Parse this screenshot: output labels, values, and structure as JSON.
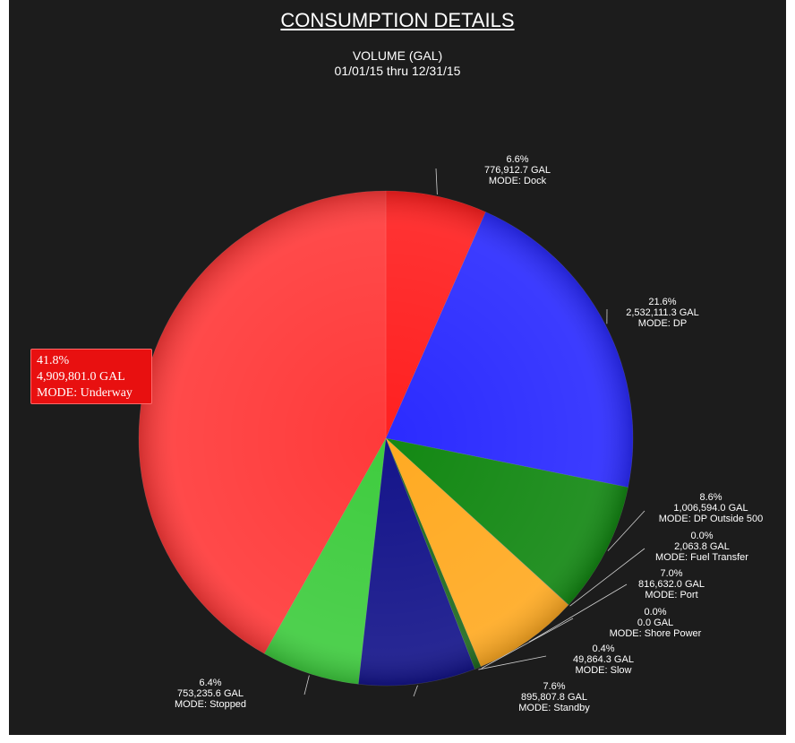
{
  "title": "CONSUMPTION DETAILS",
  "subtitle_line1": "VOLUME (GAL)",
  "subtitle_line2": "01/01/15 thru 12/31/15",
  "chart_data": {
    "type": "pie",
    "title": "CONSUMPTION DETAILS",
    "subtitle": "VOLUME (GAL) 01/01/15 thru 12/31/15",
    "slices": [
      {
        "mode": "Dock",
        "percent": "6.6%",
        "value": 776912.7,
        "value_label": "776,912.7 GAL",
        "mode_label": "MODE: Dock",
        "color": "#ff2020"
      },
      {
        "mode": "DP",
        "percent": "21.6%",
        "value": 2532111.3,
        "value_label": "2,532,111.3 GAL",
        "mode_label": "MODE: DP",
        "color": "#2b2bff"
      },
      {
        "mode": "DP Outside 500",
        "percent": "8.6%",
        "value": 1006594.0,
        "value_label": "1,006,594.0 GAL",
        "mode_label": "MODE: DP Outside 500",
        "color": "#138813"
      },
      {
        "mode": "Fuel Transfer",
        "percent": "0.0%",
        "value": 2063.8,
        "value_label": "2,063.8 GAL",
        "mode_label": "MODE: Fuel Transfer",
        "color": "#6a6a6a"
      },
      {
        "mode": "Port",
        "percent": "7.0%",
        "value": 816632.0,
        "value_label": "816,632.0 GAL",
        "mode_label": "MODE: Port",
        "color": "#ffaa22"
      },
      {
        "mode": "Shore Power",
        "percent": "0.0%",
        "value": 0.0,
        "value_label": "0.0 GAL",
        "mode_label": "MODE: Shore Power",
        "color": "#aaaaaa"
      },
      {
        "mode": "Slow",
        "percent": "0.4%",
        "value": 49864.3,
        "value_label": "49,864.3 GAL",
        "mode_label": "MODE: Slow",
        "color": "#1f6a1f"
      },
      {
        "mode": "Standby",
        "percent": "7.6%",
        "value": 895807.8,
        "value_label": "895,807.8 GAL",
        "mode_label": "MODE: Standby",
        "color": "#14148a"
      },
      {
        "mode": "Stopped",
        "percent": "6.4%",
        "value": 753235.6,
        "value_label": "753,235.6 GAL",
        "mode_label": "MODE: Stopped",
        "color": "#3fcc3f"
      },
      {
        "mode": "Underway",
        "percent": "41.8%",
        "value": 4909801.0,
        "value_label": "4,909,801.0 GAL",
        "mode_label": "MODE: Underway",
        "color": "#ff3a3a"
      }
    ]
  }
}
